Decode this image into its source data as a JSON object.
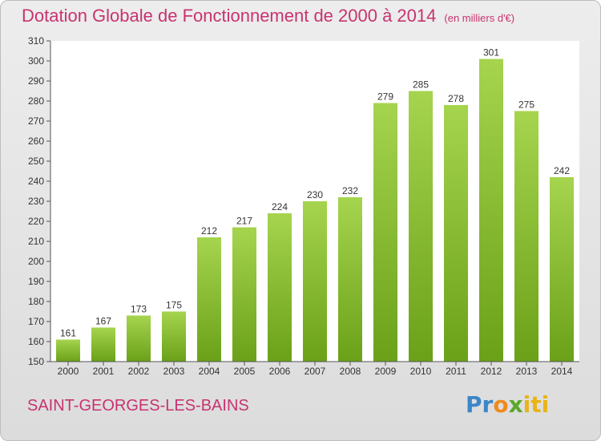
{
  "header": {
    "title": "Dotation Globale de Fonctionnement de 2000 à 2014",
    "subtitle": "(en milliers d'€)"
  },
  "footer": {
    "commune": "SAINT-GEORGES-LES-BAINS",
    "logo_text": "Proxiti"
  },
  "colors": {
    "bar_light": "#a6d44e",
    "bar_dark": "#6aa118",
    "title": "#c8336f"
  },
  "chart_data": {
    "type": "bar",
    "title": "Dotation Globale de Fonctionnement de 2000 à 2014",
    "subtitle": "(en milliers d'€)",
    "xlabel": "",
    "ylabel": "",
    "categories": [
      "2000",
      "2001",
      "2002",
      "2003",
      "2004",
      "2005",
      "2006",
      "2007",
      "2008",
      "2009",
      "2010",
      "2011",
      "2012",
      "2013",
      "2014"
    ],
    "values": [
      161,
      167,
      173,
      175,
      212,
      217,
      224,
      230,
      232,
      279,
      285,
      278,
      301,
      275,
      242
    ],
    "ylim": [
      150,
      310
    ],
    "ytick_step": 10,
    "grid": false,
    "data_labels": true
  }
}
